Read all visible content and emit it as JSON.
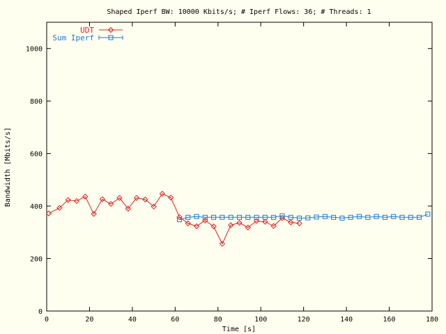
{
  "chart_data": {
    "type": "line",
    "title": "Shaped Iperf BW: 10000 Kbits/s; # Iperf Flows: 36; # Threads: 1",
    "xlabel": "Time [s]",
    "ylabel": "Bandwidth [Mbits/s]",
    "xlim": [
      0,
      180
    ],
    "ylim": [
      0,
      1100
    ],
    "xticks": [
      0,
      20,
      40,
      60,
      80,
      100,
      120,
      140,
      160,
      180
    ],
    "yticks": [
      0,
      200,
      400,
      600,
      800,
      1000
    ],
    "grid": false,
    "legend_position": "top-left",
    "series": [
      {
        "name": "UDT",
        "color": "#e02020",
        "marker": "diamond",
        "x": [
          1,
          6,
          10,
          14,
          18,
          22,
          26,
          30,
          34,
          38,
          42,
          46,
          50,
          54,
          58,
          62,
          66,
          70,
          74,
          78,
          82,
          86,
          90,
          94,
          98,
          102,
          106,
          110,
          114,
          118
        ],
        "y": [
          372,
          393,
          423,
          419,
          436,
          370,
          426,
          408,
          431,
          390,
          431,
          425,
          398,
          447,
          432,
          358,
          334,
          323,
          345,
          322,
          256,
          327,
          336,
          318,
          343,
          340,
          324,
          354,
          338,
          334
        ]
      },
      {
        "name": "Sum Iperf",
        "color": "#1a78d0",
        "marker": "square",
        "x": [
          62,
          66,
          70,
          74,
          78,
          82,
          86,
          90,
          94,
          98,
          102,
          106,
          110,
          114,
          118,
          122,
          126,
          130,
          134,
          138,
          142,
          146,
          150,
          154,
          158,
          162,
          166,
          170,
          174,
          178
        ],
        "y": [
          348,
          357,
          360,
          357,
          357,
          357,
          357,
          357,
          357,
          357,
          357,
          357,
          363,
          357,
          354,
          355,
          358,
          360,
          357,
          354,
          357,
          360,
          357,
          360,
          357,
          360,
          357,
          357,
          357,
          369
        ]
      }
    ]
  }
}
